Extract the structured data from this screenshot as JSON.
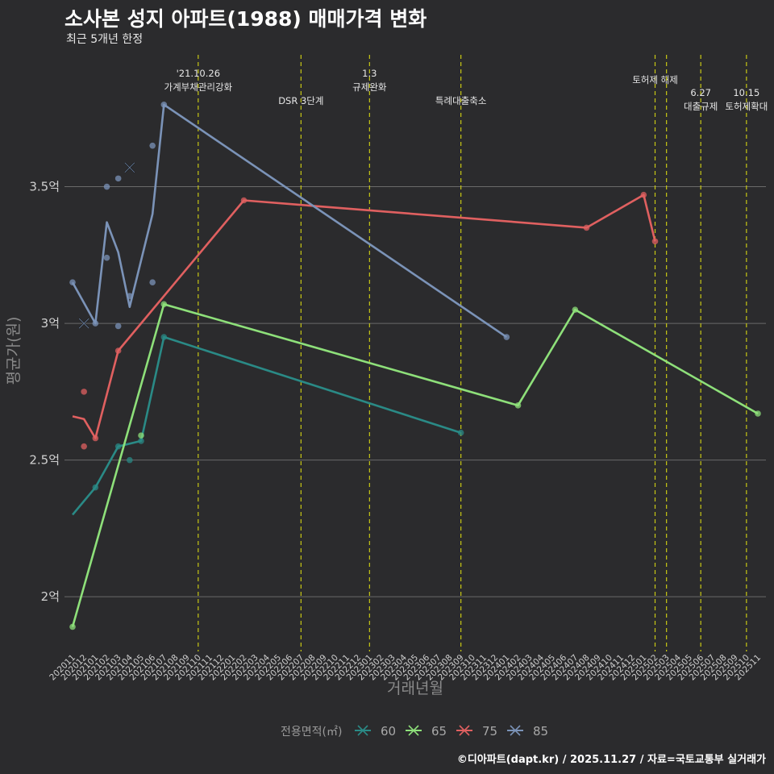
{
  "title": "소사본 성지 아파트(1988) 매매가격 변화",
  "subtitle": "최근 5개년 한정",
  "credit": "©디아파트(dapt.kr) / 2025.11.27 / 자료=국토교통부 실거래가",
  "colors": {
    "bg": "#2b2b2d",
    "grid": "#6a6a6a",
    "event": "#c8c814",
    "s60": "#2a8a86",
    "s65": "#8ee07a",
    "s75": "#e06060",
    "s85": "#7b93b8"
  },
  "chart_data": {
    "type": "line",
    "xlabel": "거래년월",
    "ylabel": "평균가(원)",
    "legend_title": "전용면적(㎡)",
    "legend_position": "bottom",
    "ylim": [
      1.8,
      4.0
    ],
    "y_ticks": [
      {
        "value": 2.0,
        "label": "2억"
      },
      {
        "value": 2.5,
        "label": "2.5억"
      },
      {
        "value": 3.0,
        "label": "3억"
      },
      {
        "value": 3.5,
        "label": "3.5억"
      }
    ],
    "x_categories": [
      "202011",
      "202012",
      "202101",
      "202102",
      "202103",
      "202104",
      "202105",
      "202106",
      "202107",
      "202108",
      "202109",
      "202110",
      "202111",
      "202112",
      "202201",
      "202202",
      "202203",
      "202204",
      "202205",
      "202206",
      "202207",
      "202208",
      "202209",
      "202210",
      "202211",
      "202212",
      "202301",
      "202302",
      "202303",
      "202304",
      "202305",
      "202306",
      "202307",
      "202308",
      "202309",
      "202310",
      "202311",
      "202312",
      "202401",
      "202402",
      "202403",
      "202404",
      "202405",
      "202406",
      "202407",
      "202408",
      "202409",
      "202410",
      "202411",
      "202412",
      "202501",
      "202502",
      "202503",
      "202504",
      "202505",
      "202506",
      "202507",
      "202508",
      "202509",
      "202510",
      "202511"
    ],
    "events": [
      {
        "x": "202110",
        "lines": [
          "'21.10.26",
          "가계부채관리강화"
        ],
        "row": 0
      },
      {
        "x": "202207",
        "lines": [
          "DSR 3단계"
        ],
        "row": 2
      },
      {
        "x": "202301",
        "lines": [
          "1.3",
          "규제완화"
        ],
        "row": 0
      },
      {
        "x": "202309",
        "lines": [
          "특례대출축소"
        ],
        "row": 2
      },
      {
        "x": "202502",
        "lines": [
          "토허제 해제"
        ],
        "row": 1
      },
      {
        "x": "202503",
        "lines": [],
        "row": 1
      },
      {
        "x": "202506",
        "lines": [
          "6.27",
          "대출규제"
        ],
        "row": 3
      },
      {
        "x": "202510",
        "lines": [
          "10.15",
          "토허제확대"
        ],
        "row": 3
      }
    ],
    "series": [
      {
        "name": "60",
        "color": "#2a8a86",
        "line": [
          [
            "202011",
            2.3
          ],
          [
            "202101",
            2.4
          ],
          [
            "202103",
            2.55
          ],
          [
            "202105",
            2.57
          ],
          [
            "202107",
            2.95
          ],
          [
            "202309",
            2.6
          ]
        ],
        "points": [
          [
            "202101",
            2.4
          ],
          [
            "202103",
            2.55
          ],
          [
            "202104",
            2.5
          ],
          [
            "202105",
            2.57
          ],
          [
            "202107",
            2.95
          ],
          [
            "202309",
            2.6
          ]
        ],
        "crosses": []
      },
      {
        "name": "65",
        "color": "#8ee07a",
        "line": [
          [
            "202011",
            1.89
          ],
          [
            "202107",
            3.07
          ],
          [
            "202402",
            2.7
          ],
          [
            "202407",
            3.05
          ],
          [
            "202511",
            2.67
          ]
        ],
        "points": [
          [
            "202011",
            1.89
          ],
          [
            "202105",
            2.59
          ],
          [
            "202107",
            3.07
          ],
          [
            "202402",
            2.7
          ],
          [
            "202407",
            3.05
          ],
          [
            "202511",
            2.67
          ]
        ],
        "crosses": []
      },
      {
        "name": "75",
        "color": "#e06060",
        "line": [
          [
            "202011",
            2.66
          ],
          [
            "202012",
            2.65
          ],
          [
            "202101",
            2.58
          ],
          [
            "202103",
            2.9
          ],
          [
            "202202",
            3.45
          ],
          [
            "202408",
            3.35
          ],
          [
            "202501",
            3.47
          ],
          [
            "202502",
            3.3
          ]
        ],
        "points": [
          [
            "202012",
            2.75
          ],
          [
            "202012",
            2.55
          ],
          [
            "202101",
            2.58
          ],
          [
            "202103",
            2.9
          ],
          [
            "202202",
            3.45
          ],
          [
            "202408",
            3.35
          ],
          [
            "202501",
            3.47
          ],
          [
            "202502",
            3.3
          ]
        ],
        "crosses": []
      },
      {
        "name": "85",
        "color": "#7b93b8",
        "line": [
          [
            "202011",
            3.15
          ],
          [
            "202101",
            3.0
          ],
          [
            "202102",
            3.37
          ],
          [
            "202103",
            3.26
          ],
          [
            "202104",
            3.06
          ],
          [
            "202106",
            3.4
          ],
          [
            "202107",
            3.8
          ],
          [
            "202401",
            2.95
          ]
        ],
        "points": [
          [
            "202011",
            3.15
          ],
          [
            "202101",
            3.0
          ],
          [
            "202102",
            3.24
          ],
          [
            "202102",
            3.5
          ],
          [
            "202103",
            3.53
          ],
          [
            "202103",
            2.99
          ],
          [
            "202104",
            3.1
          ],
          [
            "202106",
            3.65
          ],
          [
            "202106",
            3.15
          ],
          [
            "202107",
            3.8
          ],
          [
            "202401",
            2.95
          ]
        ],
        "crosses": [
          [
            "202012",
            3.0
          ],
          [
            "202104",
            3.57
          ]
        ]
      }
    ]
  }
}
